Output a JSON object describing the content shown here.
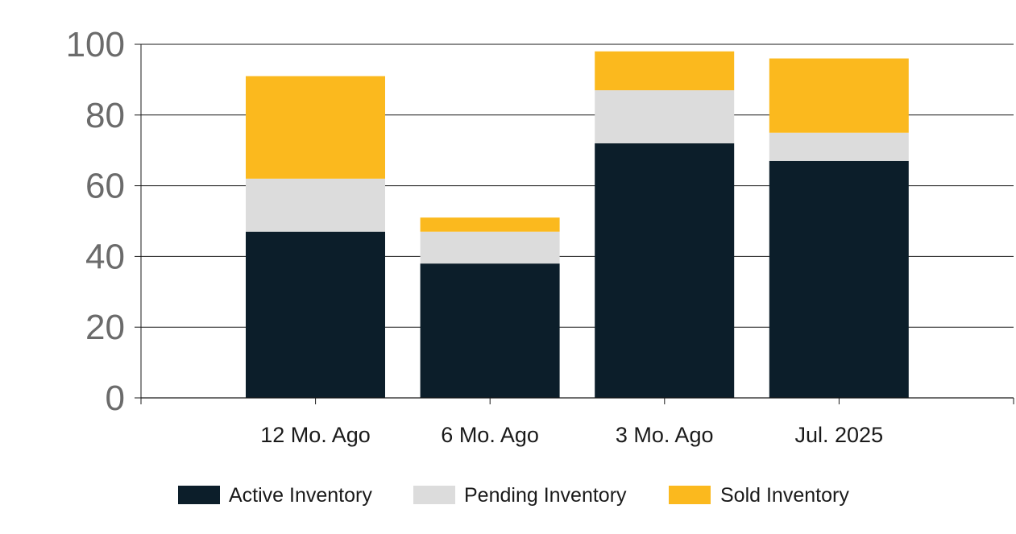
{
  "chart_data": {
    "type": "bar",
    "stacked": true,
    "categories": [
      "12 Mo. Ago",
      "6 Mo. Ago",
      "3 Mo. Ago",
      "Jul. 2025"
    ],
    "series": [
      {
        "name": "Active Inventory",
        "color": "#0c1e2a",
        "values": [
          47,
          38,
          72,
          67
        ]
      },
      {
        "name": "Pending Inventory",
        "color": "#dcdcdc",
        "values": [
          15,
          9,
          15,
          8
        ]
      },
      {
        "name": "Sold Inventory",
        "color": "#fbb91e",
        "values": [
          29,
          4,
          11,
          21
        ]
      }
    ],
    "ylim": [
      0,
      100
    ],
    "yticks": [
      "0",
      "20",
      "40",
      "60",
      "80",
      "100"
    ],
    "grid": true,
    "legend_position": "bottom"
  }
}
